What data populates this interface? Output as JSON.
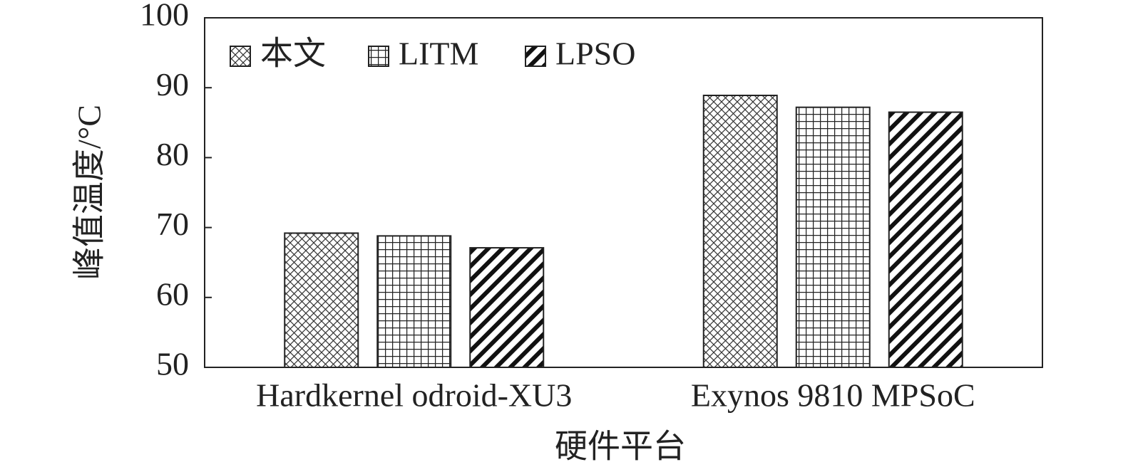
{
  "chart_data": {
    "type": "bar",
    "x_label": "硬件平台",
    "y_label": "峰值温度/°C",
    "categories": [
      "Hardkernel odroid-XU3",
      "Exynos 9810 MPSoC"
    ],
    "series": [
      {
        "name": "本文",
        "color": "#222222",
        "pattern": "crosshatch",
        "values": [
          69.2,
          88.9
        ]
      },
      {
        "name": "LITM",
        "color": "#222222",
        "pattern": "grid",
        "values": [
          68.8,
          87.2
        ]
      },
      {
        "name": "LPSO",
        "color": "#222222",
        "pattern": "diagonal",
        "values": [
          67.1,
          86.5
        ]
      }
    ],
    "ylim": [
      50,
      100
    ],
    "yticks": [
      50,
      60,
      70,
      80,
      90,
      100
    ],
    "legend": "top-left"
  }
}
